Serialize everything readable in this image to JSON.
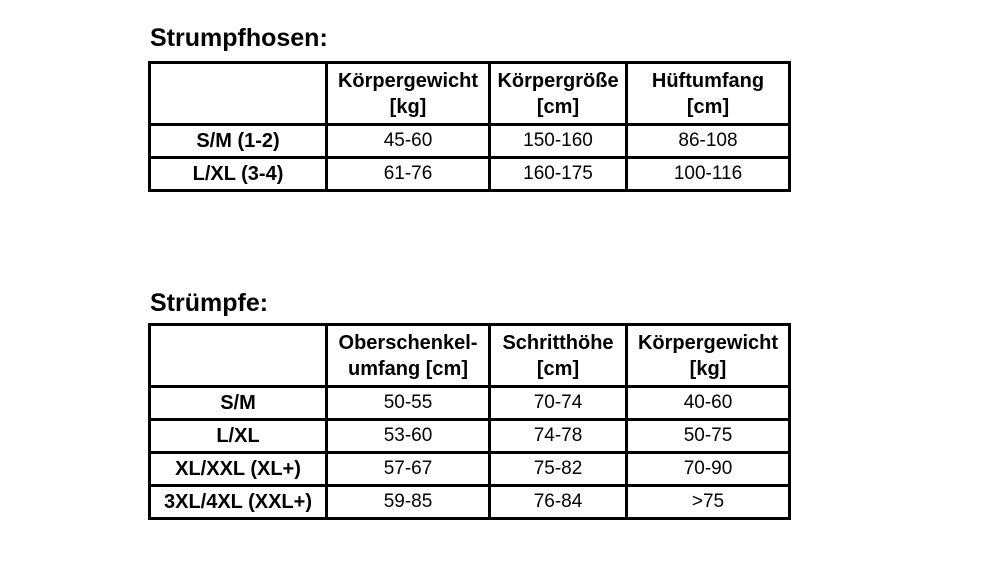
{
  "page": {
    "background_color": "#ffffff",
    "text_color": "#000000",
    "border_color": "#000000"
  },
  "tables": [
    {
      "title": "Strumpfhosen:",
      "headers": [
        "",
        "Körpergewicht\n[kg]",
        "Körpergröße\n[cm]",
        "Hüftumfang\n[cm]"
      ],
      "rows": [
        [
          "S/M (1-2)",
          "45-60",
          "150-160",
          "86-108"
        ],
        [
          "L/XL (3-4)",
          "61-76",
          "160-175",
          "100-116"
        ]
      ]
    },
    {
      "title": "Strümpfe:",
      "headers": [
        "",
        "Oberschenkel-\numfang [cm]",
        "Schritthöhe\n[cm]",
        "Körpergewicht\n[kg]"
      ],
      "rows": [
        [
          "S/M",
          "50-55",
          "70-74",
          "40-60"
        ],
        [
          "L/XL",
          "53-60",
          "74-78",
          "50-75"
        ],
        [
          "XL/XXL (XL+)",
          "57-67",
          "75-82",
          "70-90"
        ],
        [
          "3XL/4XL (XXL+)",
          "59-85",
          "76-84",
          ">75"
        ]
      ]
    }
  ]
}
